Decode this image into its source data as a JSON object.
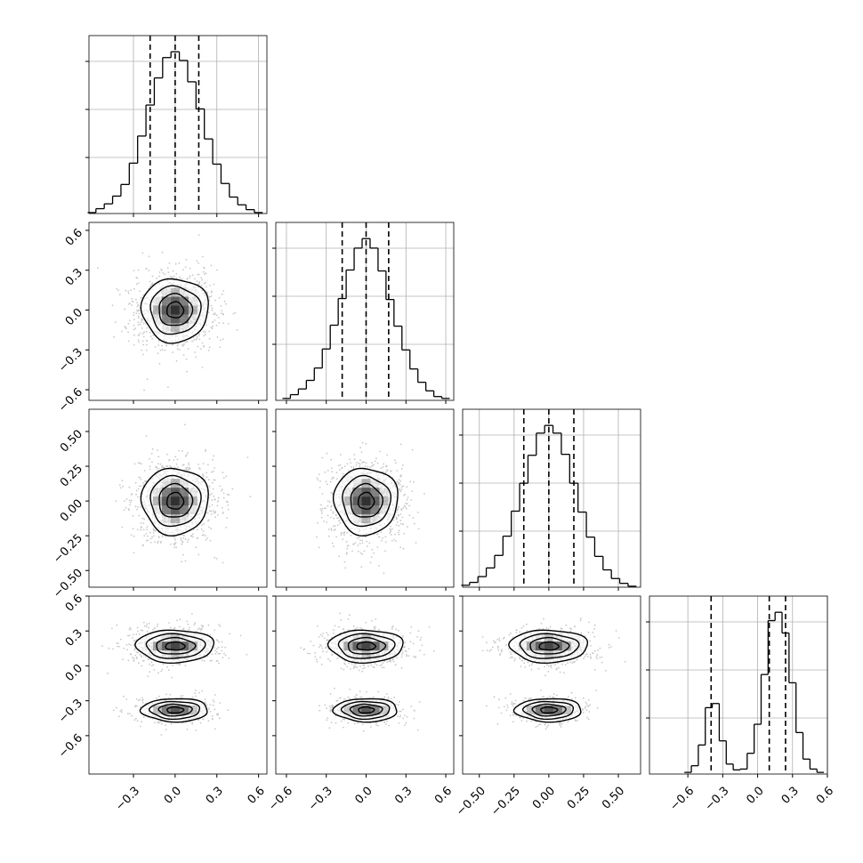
{
  "chart_data": {
    "type": "corner",
    "title": "",
    "n_params": 4,
    "params": [
      {
        "label": "",
        "range": [
          -0.62,
          0.66
        ],
        "ticks": [
          -0.3,
          0.0,
          0.3,
          0.6
        ],
        "tick_labels": [
          "−0.3",
          "0.0",
          "0.3",
          "0.6"
        ],
        "quantiles": [
          -0.18,
          0.0,
          0.17
        ],
        "hist": [
          {
            "x": -0.6,
            "y": 1
          },
          {
            "x": -0.54,
            "y": 5
          },
          {
            "x": -0.48,
            "y": 10
          },
          {
            "x": -0.42,
            "y": 18
          },
          {
            "x": -0.36,
            "y": 30
          },
          {
            "x": -0.3,
            "y": 52
          },
          {
            "x": -0.24,
            "y": 80
          },
          {
            "x": -0.18,
            "y": 112
          },
          {
            "x": -0.12,
            "y": 140
          },
          {
            "x": -0.06,
            "y": 161
          },
          {
            "x": 0.0,
            "y": 167
          },
          {
            "x": 0.06,
            "y": 158
          },
          {
            "x": 0.12,
            "y": 136
          },
          {
            "x": 0.18,
            "y": 108
          },
          {
            "x": 0.24,
            "y": 77
          },
          {
            "x": 0.3,
            "y": 51
          },
          {
            "x": 0.36,
            "y": 31
          },
          {
            "x": 0.42,
            "y": 17
          },
          {
            "x": 0.48,
            "y": 9
          },
          {
            "x": 0.54,
            "y": 4
          },
          {
            "x": 0.6,
            "y": 1
          }
        ]
      },
      {
        "label": "",
        "range": [
          -0.68,
          0.66
        ],
        "ticks": [
          -0.6,
          -0.3,
          0.0,
          0.3,
          0.6
        ],
        "tick_labels": [
          "−0.6",
          "−0.3",
          "0.0",
          "0.3",
          "0.6"
        ],
        "quantiles": [
          -0.18,
          0.0,
          0.17
        ],
        "hist": [
          {
            "x": -0.6,
            "y": 2
          },
          {
            "x": -0.54,
            "y": 6
          },
          {
            "x": -0.48,
            "y": 12
          },
          {
            "x": -0.42,
            "y": 21
          },
          {
            "x": -0.36,
            "y": 34
          },
          {
            "x": -0.3,
            "y": 54
          },
          {
            "x": -0.24,
            "y": 79
          },
          {
            "x": -0.18,
            "y": 107
          },
          {
            "x": -0.12,
            "y": 137
          },
          {
            "x": -0.06,
            "y": 160
          },
          {
            "x": 0.0,
            "y": 170
          },
          {
            "x": 0.06,
            "y": 160
          },
          {
            "x": 0.12,
            "y": 136
          },
          {
            "x": 0.18,
            "y": 106
          },
          {
            "x": 0.24,
            "y": 78
          },
          {
            "x": 0.3,
            "y": 53
          },
          {
            "x": 0.36,
            "y": 33
          },
          {
            "x": 0.42,
            "y": 19
          },
          {
            "x": 0.48,
            "y": 10
          },
          {
            "x": 0.54,
            "y": 4
          },
          {
            "x": 0.6,
            "y": 2
          }
        ]
      },
      {
        "label": "",
        "range": [
          -0.62,
          0.66
        ],
        "ticks": [
          -0.5,
          -0.25,
          0.0,
          0.25,
          0.5
        ],
        "tick_labels": [
          "−0.50",
          "−0.25",
          "0.00",
          "0.25",
          "0.50"
        ],
        "quantiles": [
          -0.18,
          0.0,
          0.18
        ],
        "hist": [
          {
            "x": -0.6,
            "y": 2
          },
          {
            "x": -0.54,
            "y": 5
          },
          {
            "x": -0.48,
            "y": 11
          },
          {
            "x": -0.42,
            "y": 20
          },
          {
            "x": -0.36,
            "y": 33
          },
          {
            "x": -0.3,
            "y": 53
          },
          {
            "x": -0.24,
            "y": 79
          },
          {
            "x": -0.18,
            "y": 108
          },
          {
            "x": -0.12,
            "y": 137
          },
          {
            "x": -0.06,
            "y": 160
          },
          {
            "x": 0.0,
            "y": 168
          },
          {
            "x": 0.06,
            "y": 160
          },
          {
            "x": 0.12,
            "y": 138
          },
          {
            "x": 0.18,
            "y": 108
          },
          {
            "x": 0.24,
            "y": 78
          },
          {
            "x": 0.3,
            "y": 52
          },
          {
            "x": 0.36,
            "y": 32
          },
          {
            "x": 0.42,
            "y": 18
          },
          {
            "x": 0.48,
            "y": 9
          },
          {
            "x": 0.54,
            "y": 4
          },
          {
            "x": 0.6,
            "y": 1
          }
        ]
      },
      {
        "label": "",
        "range": [
          -0.93,
          0.6
        ],
        "ticks": [
          -0.6,
          -0.3,
          0.0,
          0.3,
          0.6
        ],
        "tick_labels": [
          "−0.6",
          "−0.3",
          "0.0",
          "0.3",
          "0.6"
        ],
        "quantiles": [
          -0.4,
          0.1,
          0.24
        ],
        "hist": [
          {
            "x": -0.6,
            "y": 2
          },
          {
            "x": -0.54,
            "y": 10
          },
          {
            "x": -0.48,
            "y": 35
          },
          {
            "x": -0.42,
            "y": 80
          },
          {
            "x": -0.36,
            "y": 85
          },
          {
            "x": -0.3,
            "y": 40
          },
          {
            "x": -0.24,
            "y": 12
          },
          {
            "x": -0.18,
            "y": 5
          },
          {
            "x": -0.12,
            "y": 6
          },
          {
            "x": -0.06,
            "y": 25
          },
          {
            "x": 0.0,
            "y": 60
          },
          {
            "x": 0.06,
            "y": 120
          },
          {
            "x": 0.12,
            "y": 185
          },
          {
            "x": 0.18,
            "y": 195
          },
          {
            "x": 0.24,
            "y": 170
          },
          {
            "x": 0.3,
            "y": 110
          },
          {
            "x": 0.36,
            "y": 50
          },
          {
            "x": 0.42,
            "y": 18
          },
          {
            "x": 0.48,
            "y": 6
          },
          {
            "x": 0.54,
            "y": 2
          }
        ]
      }
    ],
    "pairs": [
      {
        "x": 0,
        "y": 1,
        "components": [
          {
            "mx": 0.0,
            "my": 0.0,
            "sx": 0.12,
            "sy": 0.12,
            "w": 1
          }
        ]
      },
      {
        "x": 0,
        "y": 2,
        "components": [
          {
            "mx": 0.0,
            "my": 0.0,
            "sx": 0.12,
            "sy": 0.12,
            "w": 1
          }
        ]
      },
      {
        "x": 1,
        "y": 2,
        "components": [
          {
            "mx": 0.0,
            "my": 0.0,
            "sx": 0.12,
            "sy": 0.12,
            "w": 1
          }
        ]
      },
      {
        "x": 0,
        "y": 3,
        "components": [
          {
            "mx": 0.0,
            "my": 0.17,
            "sx": 0.14,
            "sy": 0.07,
            "w": 0.65
          },
          {
            "mx": 0.0,
            "my": -0.38,
            "sx": 0.12,
            "sy": 0.05,
            "w": 0.35
          }
        ]
      },
      {
        "x": 1,
        "y": 3,
        "components": [
          {
            "mx": 0.0,
            "my": 0.17,
            "sx": 0.14,
            "sy": 0.07,
            "w": 0.65
          },
          {
            "mx": 0.0,
            "my": -0.38,
            "sx": 0.12,
            "sy": 0.05,
            "w": 0.35
          }
        ]
      },
      {
        "x": 2,
        "y": 3,
        "components": [
          {
            "mx": 0.0,
            "my": 0.17,
            "sx": 0.14,
            "sy": 0.07,
            "w": 0.65
          },
          {
            "mx": 0.0,
            "my": -0.38,
            "sx": 0.12,
            "sy": 0.05,
            "w": 0.35
          }
        ]
      }
    ],
    "contour_levels_sigma": [
      0.5,
      1.0,
      1.5,
      2.0
    ],
    "grid": true,
    "colors": {
      "line": "#000000",
      "grid": "#b0b0b0",
      "scatter": "#c8c8c8",
      "density": "#000000"
    }
  }
}
